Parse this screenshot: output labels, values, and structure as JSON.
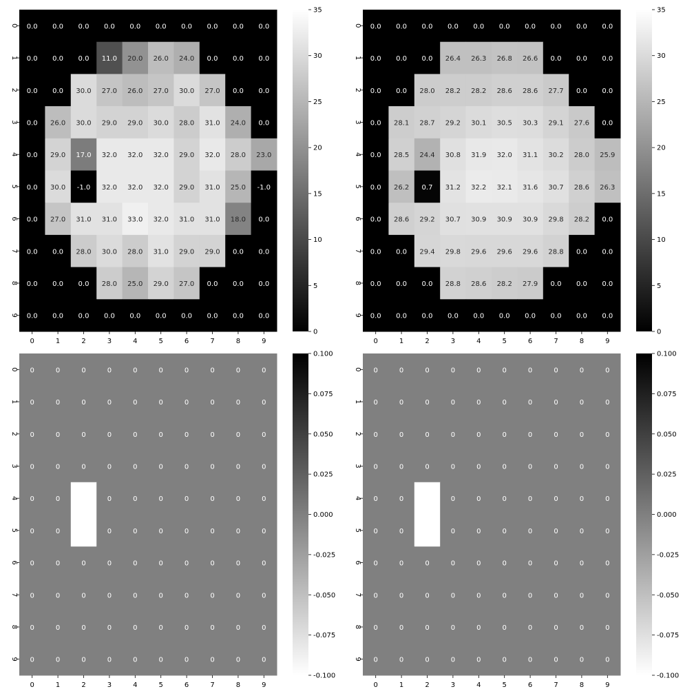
{
  "chart_data": [
    {
      "type": "heatmap",
      "title": "",
      "xlabel": "",
      "ylabel": "",
      "x_ticks": [
        "0",
        "1",
        "2",
        "3",
        "4",
        "5",
        "6",
        "7",
        "8",
        "9"
      ],
      "y_ticks": [
        "0",
        "1",
        "2",
        "3",
        "4",
        "5",
        "6",
        "7",
        "8",
        "9"
      ],
      "colormap": "gray",
      "colorbar": {
        "vmin": 0,
        "vmax": 35,
        "ticks": [
          "0",
          "5",
          "10",
          "15",
          "20",
          "25",
          "30",
          "35"
        ]
      },
      "annotation_format": "0.0",
      "values": [
        [
          0,
          0,
          0,
          0,
          0,
          0,
          0,
          0,
          0,
          0
        ],
        [
          0,
          0,
          0,
          11,
          20,
          26,
          24,
          0,
          0,
          0
        ],
        [
          0,
          0,
          30,
          27,
          26,
          27,
          30,
          27,
          0,
          0
        ],
        [
          0,
          26,
          30,
          29,
          29,
          30,
          28,
          31,
          24,
          0
        ],
        [
          0,
          29,
          17,
          32,
          32,
          32,
          29,
          32,
          28,
          23
        ],
        [
          0,
          30,
          -1,
          32,
          32,
          32,
          29,
          31,
          25,
          -1
        ],
        [
          0,
          27,
          31,
          31,
          33,
          32,
          31,
          31,
          18,
          0
        ],
        [
          0,
          0,
          28,
          30,
          28,
          31,
          29,
          29,
          0,
          0
        ],
        [
          0,
          0,
          0,
          28,
          25,
          29,
          27,
          0,
          0,
          0
        ],
        [
          0,
          0,
          0,
          0,
          0,
          0,
          0,
          0,
          0,
          0
        ]
      ],
      "labels": [
        [
          "0.0",
          "0.0",
          "0.0",
          "0.0",
          "0.0",
          "0.0",
          "0.0",
          "0.0",
          "0.0",
          "0.0"
        ],
        [
          "0.0",
          "0.0",
          "0.0",
          "11.0",
          "20.0",
          "26.0",
          "24.0",
          "0.0",
          "0.0",
          "0.0"
        ],
        [
          "0.0",
          "0.0",
          "30.0",
          "27.0",
          "26.0",
          "27.0",
          "30.0",
          "27.0",
          "0.0",
          "0.0"
        ],
        [
          "0.0",
          "26.0",
          "30.0",
          "29.0",
          "29.0",
          "30.0",
          "28.0",
          "31.0",
          "24.0",
          "0.0"
        ],
        [
          "0.0",
          "29.0",
          "17.0",
          "32.0",
          "32.0",
          "32.0",
          "29.0",
          "32.0",
          "28.0",
          "23.0"
        ],
        [
          "0.0",
          "30.0",
          "-1.0",
          "32.0",
          "32.0",
          "32.0",
          "29.0",
          "31.0",
          "25.0",
          "-1.0"
        ],
        [
          "0.0",
          "27.0",
          "31.0",
          "31.0",
          "33.0",
          "32.0",
          "31.0",
          "31.0",
          "18.0",
          "0.0"
        ],
        [
          "0.0",
          "0.0",
          "28.0",
          "30.0",
          "28.0",
          "31.0",
          "29.0",
          "29.0",
          "0.0",
          "0.0"
        ],
        [
          "0.0",
          "0.0",
          "0.0",
          "28.0",
          "25.0",
          "29.0",
          "27.0",
          "0.0",
          "0.0",
          "0.0"
        ],
        [
          "0.0",
          "0.0",
          "0.0",
          "0.0",
          "0.0",
          "0.0",
          "0.0",
          "0.0",
          "0.0",
          "0.0"
        ]
      ]
    },
    {
      "type": "heatmap",
      "title": "",
      "xlabel": "",
      "ylabel": "",
      "x_ticks": [
        "0",
        "1",
        "2",
        "3",
        "4",
        "5",
        "6",
        "7",
        "8",
        "9"
      ],
      "y_ticks": [
        "0",
        "1",
        "2",
        "3",
        "4",
        "5",
        "6",
        "7",
        "8",
        "9"
      ],
      "colormap": "gray",
      "colorbar": {
        "vmin": 0,
        "vmax": 35,
        "ticks": [
          "0",
          "5",
          "10",
          "15",
          "20",
          "25",
          "30",
          "35"
        ]
      },
      "annotation_format": "0.0",
      "values": [
        [
          0,
          0,
          0,
          0,
          0,
          0,
          0,
          0,
          0,
          0
        ],
        [
          0,
          0,
          0,
          26.4,
          26.3,
          26.8,
          26.6,
          0,
          0,
          0
        ],
        [
          0,
          0,
          28.0,
          28.2,
          28.2,
          28.6,
          28.6,
          27.7,
          0,
          0
        ],
        [
          0,
          28.1,
          28.7,
          29.2,
          30.1,
          30.5,
          30.3,
          29.1,
          27.6,
          0
        ],
        [
          0,
          28.5,
          24.4,
          30.8,
          31.9,
          32.0,
          31.1,
          30.2,
          28.0,
          25.9
        ],
        [
          0,
          26.2,
          0.7,
          31.2,
          32.2,
          32.1,
          31.6,
          30.7,
          28.6,
          26.3
        ],
        [
          0,
          28.6,
          29.2,
          30.7,
          30.9,
          30.9,
          30.9,
          29.8,
          28.2,
          0
        ],
        [
          0,
          0,
          29.4,
          29.8,
          29.6,
          29.6,
          29.6,
          28.8,
          0,
          0
        ],
        [
          0,
          0,
          0,
          28.8,
          28.6,
          28.2,
          27.9,
          0,
          0,
          0
        ],
        [
          0,
          0,
          0,
          0,
          0,
          0,
          0,
          0,
          0,
          0
        ]
      ],
      "labels": [
        [
          "0.0",
          "0.0",
          "0.0",
          "0.0",
          "0.0",
          "0.0",
          "0.0",
          "0.0",
          "0.0",
          "0.0"
        ],
        [
          "0.0",
          "0.0",
          "0.0",
          "26.4",
          "26.3",
          "26.8",
          "26.6",
          "0.0",
          "0.0",
          "0.0"
        ],
        [
          "0.0",
          "0.0",
          "28.0",
          "28.2",
          "28.2",
          "28.6",
          "28.6",
          "27.7",
          "0.0",
          "0.0"
        ],
        [
          "0.0",
          "28.1",
          "28.7",
          "29.2",
          "30.1",
          "30.5",
          "30.3",
          "29.1",
          "27.6",
          "0.0"
        ],
        [
          "0.0",
          "28.5",
          "24.4",
          "30.8",
          "31.9",
          "32.0",
          "31.1",
          "30.2",
          "28.0",
          "25.9"
        ],
        [
          "0.0",
          "26.2",
          "0.7",
          "31.2",
          "32.2",
          "32.1",
          "31.6",
          "30.7",
          "28.6",
          "26.3"
        ],
        [
          "0.0",
          "28.6",
          "29.2",
          "30.7",
          "30.9",
          "30.9",
          "30.9",
          "29.8",
          "28.2",
          "0.0"
        ],
        [
          "0.0",
          "0.0",
          "29.4",
          "29.8",
          "29.6",
          "29.6",
          "29.6",
          "28.8",
          "0.0",
          "0.0"
        ],
        [
          "0.0",
          "0.0",
          "0.0",
          "28.8",
          "28.6",
          "28.2",
          "27.9",
          "0.0",
          "0.0",
          "0.0"
        ],
        [
          "0.0",
          "0.0",
          "0.0",
          "0.0",
          "0.0",
          "0.0",
          "0.0",
          "0.0",
          "0.0",
          "0.0"
        ]
      ]
    },
    {
      "type": "heatmap",
      "title": "",
      "xlabel": "",
      "ylabel": "",
      "x_ticks": [
        "0",
        "1",
        "2",
        "3",
        "4",
        "5",
        "6",
        "7",
        "8",
        "9"
      ],
      "y_ticks": [
        "0",
        "1",
        "2",
        "3",
        "4",
        "5",
        "6",
        "7",
        "8",
        "9"
      ],
      "colormap": "gray_r",
      "colorbar": {
        "vmin": -0.1,
        "vmax": 0.1,
        "ticks": [
          "-0.100",
          "-0.075",
          "-0.050",
          "-0.025",
          "0.000",
          "0.025",
          "0.050",
          "0.075",
          "0.100"
        ]
      },
      "annotation_format": "0",
      "masked_cells": [
        [
          4,
          2
        ],
        [
          5,
          2
        ]
      ],
      "values": [
        [
          0,
          0,
          0,
          0,
          0,
          0,
          0,
          0,
          0,
          0
        ],
        [
          0,
          0,
          0,
          0,
          0,
          0,
          0,
          0,
          0,
          0
        ],
        [
          0,
          0,
          0,
          0,
          0,
          0,
          0,
          0,
          0,
          0
        ],
        [
          0,
          0,
          0,
          0,
          0,
          0,
          0,
          0,
          0,
          0
        ],
        [
          0,
          0,
          0,
          0,
          0,
          0,
          0,
          0,
          0,
          0
        ],
        [
          0,
          0,
          0,
          0,
          0,
          0,
          0,
          0,
          0,
          0
        ],
        [
          0,
          0,
          0,
          0,
          0,
          0,
          0,
          0,
          0,
          0
        ],
        [
          0,
          0,
          0,
          0,
          0,
          0,
          0,
          0,
          0,
          0
        ],
        [
          0,
          0,
          0,
          0,
          0,
          0,
          0,
          0,
          0,
          0
        ],
        [
          0,
          0,
          0,
          0,
          0,
          0,
          0,
          0,
          0,
          0
        ]
      ],
      "labels": [
        [
          "0",
          "0",
          "0",
          "0",
          "0",
          "0",
          "0",
          "0",
          "0",
          "0"
        ],
        [
          "0",
          "0",
          "0",
          "0",
          "0",
          "0",
          "0",
          "0",
          "0",
          "0"
        ],
        [
          "0",
          "0",
          "0",
          "0",
          "0",
          "0",
          "0",
          "0",
          "0",
          "0"
        ],
        [
          "0",
          "0",
          "0",
          "0",
          "0",
          "0",
          "0",
          "0",
          "0",
          "0"
        ],
        [
          "0",
          "0",
          "",
          "0",
          "0",
          "0",
          "0",
          "0",
          "0",
          "0"
        ],
        [
          "0",
          "0",
          "",
          "0",
          "0",
          "0",
          "0",
          "0",
          "0",
          "0"
        ],
        [
          "0",
          "0",
          "0",
          "0",
          "0",
          "0",
          "0",
          "0",
          "0",
          "0"
        ],
        [
          "0",
          "0",
          "0",
          "0",
          "0",
          "0",
          "0",
          "0",
          "0",
          "0"
        ],
        [
          "0",
          "0",
          "0",
          "0",
          "0",
          "0",
          "0",
          "0",
          "0",
          "0"
        ],
        [
          "0",
          "0",
          "0",
          "0",
          "0",
          "0",
          "0",
          "0",
          "0",
          "0"
        ]
      ]
    },
    {
      "type": "heatmap",
      "title": "",
      "xlabel": "",
      "ylabel": "",
      "x_ticks": [
        "0",
        "1",
        "2",
        "3",
        "4",
        "5",
        "6",
        "7",
        "8",
        "9"
      ],
      "y_ticks": [
        "0",
        "1",
        "2",
        "3",
        "4",
        "5",
        "6",
        "7",
        "8",
        "9"
      ],
      "colormap": "gray_r",
      "colorbar": {
        "vmin": -0.1,
        "vmax": 0.1,
        "ticks": [
          "-0.100",
          "-0.075",
          "-0.050",
          "-0.025",
          "0.000",
          "0.025",
          "0.050",
          "0.075",
          "0.100"
        ]
      },
      "annotation_format": "0",
      "masked_cells": [
        [
          4,
          2
        ],
        [
          5,
          2
        ]
      ],
      "values": [
        [
          0,
          0,
          0,
          0,
          0,
          0,
          0,
          0,
          0,
          0
        ],
        [
          0,
          0,
          0,
          0,
          0,
          0,
          0,
          0,
          0,
          0
        ],
        [
          0,
          0,
          0,
          0,
          0,
          0,
          0,
          0,
          0,
          0
        ],
        [
          0,
          0,
          0,
          0,
          0,
          0,
          0,
          0,
          0,
          0
        ],
        [
          0,
          0,
          0,
          0,
          0,
          0,
          0,
          0,
          0,
          0
        ],
        [
          0,
          0,
          0,
          0,
          0,
          0,
          0,
          0,
          0,
          0
        ],
        [
          0,
          0,
          0,
          0,
          0,
          0,
          0,
          0,
          0,
          0
        ],
        [
          0,
          0,
          0,
          0,
          0,
          0,
          0,
          0,
          0,
          0
        ],
        [
          0,
          0,
          0,
          0,
          0,
          0,
          0,
          0,
          0,
          0
        ],
        [
          0,
          0,
          0,
          0,
          0,
          0,
          0,
          0,
          0,
          0
        ]
      ],
      "labels": [
        [
          "0",
          "0",
          "0",
          "0",
          "0",
          "0",
          "0",
          "0",
          "0",
          "0"
        ],
        [
          "0",
          "0",
          "0",
          "0",
          "0",
          "0",
          "0",
          "0",
          "0",
          "0"
        ],
        [
          "0",
          "0",
          "0",
          "0",
          "0",
          "0",
          "0",
          "0",
          "0",
          "0"
        ],
        [
          "0",
          "0",
          "0",
          "0",
          "0",
          "0",
          "0",
          "0",
          "0",
          "0"
        ],
        [
          "0",
          "0",
          "",
          "0",
          "0",
          "0",
          "0",
          "0",
          "0",
          "0"
        ],
        [
          "0",
          "0",
          "",
          "0",
          "0",
          "0",
          "0",
          "0",
          "0",
          "0"
        ],
        [
          "0",
          "0",
          "0",
          "0",
          "0",
          "0",
          "0",
          "0",
          "0",
          "0"
        ],
        [
          "0",
          "0",
          "0",
          "0",
          "0",
          "0",
          "0",
          "0",
          "0",
          "0"
        ],
        [
          "0",
          "0",
          "0",
          "0",
          "0",
          "0",
          "0",
          "0",
          "0",
          "0"
        ],
        [
          "0",
          "0",
          "0",
          "0",
          "0",
          "0",
          "0",
          "0",
          "0",
          "0"
        ]
      ]
    }
  ]
}
